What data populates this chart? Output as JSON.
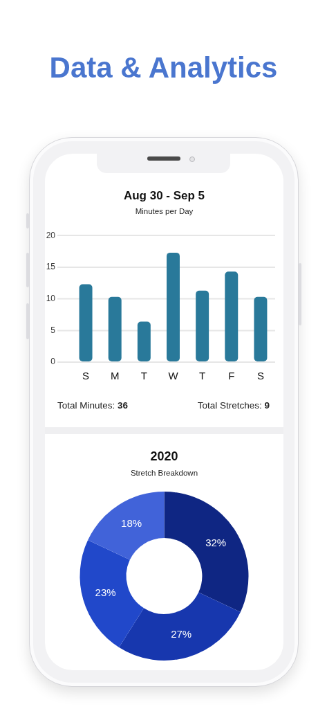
{
  "chart_data": [
    {
      "type": "other",
      "title": "Data & Analytics"
    },
    {
      "type": "bar",
      "title": "Aug 30 - Sep 5",
      "subtitle": "Minutes per Day",
      "categories": [
        "S",
        "M",
        "T",
        "W",
        "T",
        "F",
        "S"
      ],
      "values": [
        12.3,
        10.3,
        6.4,
        17.3,
        11.3,
        14.3,
        10.3
      ],
      "color": "#29799a",
      "ylim": [
        0,
        20
      ],
      "yticks": [
        0,
        5,
        10,
        15,
        20
      ],
      "grid": "y",
      "annotations": [
        "Total Minutes: 36",
        "Total Stretches: 9"
      ]
    },
    {
      "type": "donut",
      "title": "2020",
      "subtitle": "Stretch Breakdown",
      "categories": [
        null,
        null,
        null,
        null
      ],
      "values": [
        32,
        27,
        23,
        18
      ],
      "colors": [
        "#0f2683",
        "#1737ae",
        "#2148ca",
        "#4163d9"
      ],
      "value_labels": [
        "32%",
        "27%",
        "23%",
        "18%"
      ]
    }
  ]
}
